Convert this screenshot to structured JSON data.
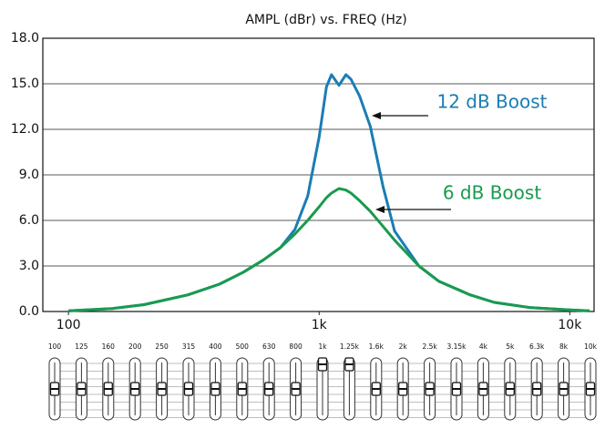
{
  "chart_data": {
    "type": "line",
    "title": "AMPL (dBr) vs. FREQ (Hz)",
    "x": [
      100,
      150,
      200,
      300,
      400,
      500,
      600,
      700,
      800,
      900,
      1000,
      1070,
      1120,
      1200,
      1280,
      1340,
      1450,
      1600,
      1800,
      2000,
      2500,
      3000,
      4000,
      5000,
      7000,
      10000,
      12000
    ],
    "series": [
      {
        "name": "12 dB Boost",
        "color": "#1b7db4",
        "values": [
          0.05,
          0.2,
          0.45,
          1.1,
          1.8,
          2.6,
          3.4,
          4.2,
          5.4,
          7.6,
          11.5,
          14.8,
          15.6,
          14.9,
          15.6,
          15.3,
          14.2,
          12.2,
          8.2,
          5.3,
          3.0,
          2.0,
          1.1,
          0.6,
          0.25,
          0.1,
          0.05
        ]
      },
      {
        "name": "6 dB Boost",
        "color": "#1a9a4e",
        "values": [
          0.05,
          0.2,
          0.45,
          1.1,
          1.8,
          2.6,
          3.4,
          4.2,
          5.1,
          6.0,
          6.9,
          7.5,
          7.8,
          8.1,
          8.0,
          7.8,
          7.3,
          6.6,
          5.6,
          4.7,
          3.0,
          2.0,
          1.1,
          0.6,
          0.25,
          0.1,
          0.05
        ]
      }
    ],
    "xscale": "log",
    "xlim": [
      79,
      12500
    ],
    "xticks": [
      {
        "value": 100,
        "label": "100"
      },
      {
        "value": 1000,
        "label": "1k"
      },
      {
        "value": 10000,
        "label": "10k"
      }
    ],
    "ylim": [
      0,
      18
    ],
    "yticks": [
      {
        "value": 0,
        "label": "0.0"
      },
      {
        "value": 3,
        "label": "3.0"
      },
      {
        "value": 6,
        "label": "6.0"
      },
      {
        "value": 9,
        "label": "9.0"
      },
      {
        "value": 12,
        "label": "12.0"
      },
      {
        "value": 15,
        "label": "15.0"
      },
      {
        "value": 18,
        "label": "18.0"
      }
    ],
    "grid": true,
    "eq": {
      "bands": [
        "100",
        "125",
        "160",
        "200",
        "250",
        "315",
        "400",
        "500",
        "630",
        "800",
        "1k",
        "1.25k",
        "1.6k",
        "2k",
        "2.5k",
        "3.15k",
        "4k",
        "5k",
        "6.3k",
        "8k",
        "10k"
      ],
      "gains": [
        0,
        0,
        0,
        0,
        0,
        0,
        0,
        0,
        0,
        0,
        12,
        12,
        0,
        0,
        0,
        0,
        0,
        0,
        0,
        0,
        0
      ],
      "gain_range": [
        -12,
        12
      ]
    }
  }
}
